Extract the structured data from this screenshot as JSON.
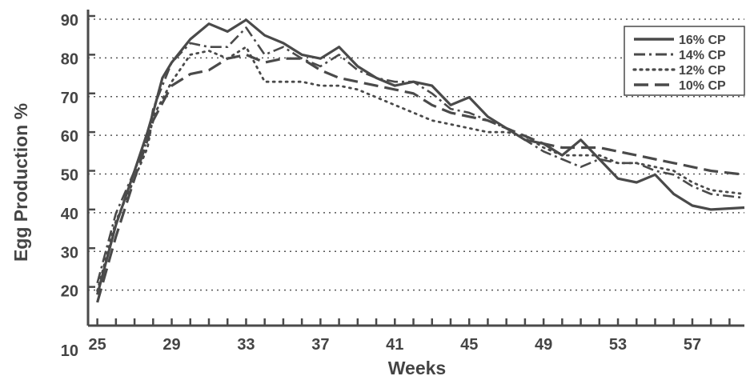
{
  "chart_data": {
    "type": "line",
    "title": "",
    "xlabel": "Weeks",
    "ylabel": "Egg Production %",
    "xlim": [
      24.5,
      59.8
    ],
    "ylim": [
      10,
      90
    ],
    "xticks": [
      25,
      29,
      33,
      37,
      41,
      45,
      49,
      53,
      57
    ],
    "yticks": [
      10,
      20,
      30,
      40,
      50,
      60,
      70,
      80,
      90
    ],
    "grid": "horizontal dotted",
    "legend_position": "top-right",
    "colors": {
      "line": "#4a4a4a",
      "grid": "#555555",
      "text": "#444444"
    },
    "series": [
      {
        "name": "16% CP",
        "style": "solid",
        "x": [
          25,
          26,
          27,
          27.7,
          28,
          28.5,
          29,
          30,
          31,
          32,
          33,
          34,
          35,
          36,
          37,
          38,
          39,
          40,
          41,
          42,
          43,
          44,
          45,
          46,
          47,
          48,
          49,
          50,
          51,
          52,
          53,
          54,
          55,
          56,
          57,
          58,
          59.8
        ],
        "y": [
          18,
          36,
          50,
          60,
          65,
          74,
          78,
          84,
          88,
          86,
          89,
          85,
          83,
          80,
          79,
          82,
          77,
          74,
          72,
          73,
          72,
          67,
          69,
          64,
          61,
          58,
          57,
          54,
          58,
          53,
          48,
          47,
          49,
          44,
          41,
          40,
          40.5
        ]
      },
      {
        "name": "14% CP",
        "style": "dash-dot",
        "x": [
          25,
          26,
          27,
          27.7,
          28,
          29,
          30,
          31,
          32,
          33,
          34,
          35,
          36,
          37,
          38,
          39,
          40,
          41,
          42,
          43,
          44,
          45,
          46,
          47,
          48,
          49,
          50,
          51,
          52,
          53,
          54,
          55,
          56,
          57,
          58,
          59.8
        ],
        "y": [
          21,
          39,
          50,
          58,
          66,
          78,
          83,
          82,
          82,
          87,
          80,
          82,
          79,
          77,
          80,
          76,
          74,
          73,
          73,
          70,
          66,
          65,
          63,
          61,
          58,
          55,
          53,
          51,
          53,
          52,
          52,
          50,
          49,
          46,
          44,
          43
        ]
      },
      {
        "name": "12% CP",
        "style": "dotted",
        "x": [
          25,
          26,
          27,
          27.7,
          28,
          29,
          30,
          31,
          32,
          33,
          34,
          35,
          36,
          37,
          38,
          39,
          40,
          41,
          42,
          43,
          44,
          45,
          46,
          47,
          48,
          49,
          50,
          51,
          52,
          53,
          54,
          55,
          56,
          57,
          58,
          59.8
        ],
        "y": [
          19,
          37,
          48,
          56,
          64,
          73,
          80,
          81,
          79,
          82,
          73,
          73,
          73,
          72,
          72,
          71,
          69,
          67,
          65,
          63,
          62,
          61,
          60,
          60,
          59,
          56,
          54,
          54,
          54,
          52,
          52,
          51,
          50,
          47,
          45,
          44
        ]
      },
      {
        "name": "10% CP",
        "style": "dashed",
        "x": [
          25,
          26,
          27,
          27.7,
          28,
          29,
          30,
          31,
          32,
          33,
          34,
          35,
          36,
          37,
          38,
          39,
          40,
          41,
          42,
          43,
          44,
          45,
          46,
          47,
          48,
          49,
          50,
          51,
          52,
          53,
          54,
          55,
          56,
          57,
          58,
          59.8
        ],
        "y": [
          16,
          33,
          48,
          58,
          63,
          72,
          75,
          76,
          79,
          80,
          78,
          79,
          79,
          76,
          74,
          73,
          72,
          71,
          70,
          67,
          65,
          64,
          63,
          61,
          59,
          57,
          56,
          56,
          56,
          55,
          54,
          53,
          52,
          51,
          50,
          49
        ]
      }
    ]
  }
}
